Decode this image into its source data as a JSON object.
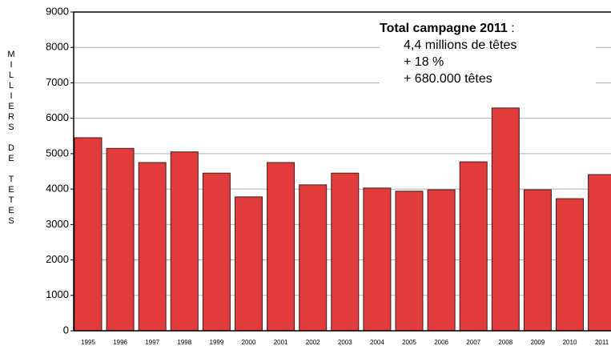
{
  "chart_data": {
    "type": "bar",
    "y_axis_label": "MILLIERS DE TETES",
    "categories": [
      "1995",
      "1996",
      "1997",
      "1998",
      "1999",
      "2000",
      "2001",
      "2002",
      "2003",
      "2004",
      "2005",
      "2006",
      "2007",
      "2008",
      "2009",
      "2010",
      "2011"
    ],
    "values": [
      5450,
      5150,
      4750,
      5050,
      4450,
      3780,
      4750,
      4120,
      4450,
      4030,
      3940,
      3980,
      4770,
      6290,
      3980,
      3730,
      4410
    ],
    "color": "#e23b3b",
    "ylim": [
      0,
      9000
    ],
    "yticks": [
      0,
      1000,
      2000,
      3000,
      4000,
      5000,
      6000,
      7000,
      8000,
      9000
    ],
    "grid": true,
    "annotation": {
      "title": "Total campagne 2011",
      "separator": ":",
      "lines": [
        "4,4 millions de têtes",
        "+ 18 %",
        "+ 680.000 têtes"
      ]
    }
  }
}
